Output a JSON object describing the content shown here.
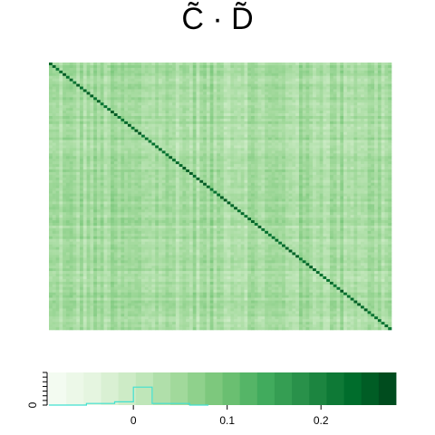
{
  "chart_data": {
    "type": "heatmap",
    "title": "C̃ · D̃",
    "palette": [
      "#f7fcf5",
      "#e5f5e0",
      "#c7e9c0",
      "#a1d99b",
      "#74c476",
      "#41ab5d",
      "#238b45",
      "#006d2c",
      "#00441b"
    ],
    "matrix": {
      "size": 100,
      "description_values": "pairwise products; diagonal strongest",
      "diag_value": 0.22,
      "background_value": 0.04
    },
    "colorbar": {
      "range": [
        -0.09,
        0.28
      ],
      "xticks": [
        0,
        0.1,
        0.2
      ],
      "xtick_labels": [
        "0",
        "0.1",
        "0.2"
      ],
      "ytick_labels": [
        "0"
      ],
      "n_bins": 20,
      "histogram_color": "#40e0d0"
    }
  }
}
